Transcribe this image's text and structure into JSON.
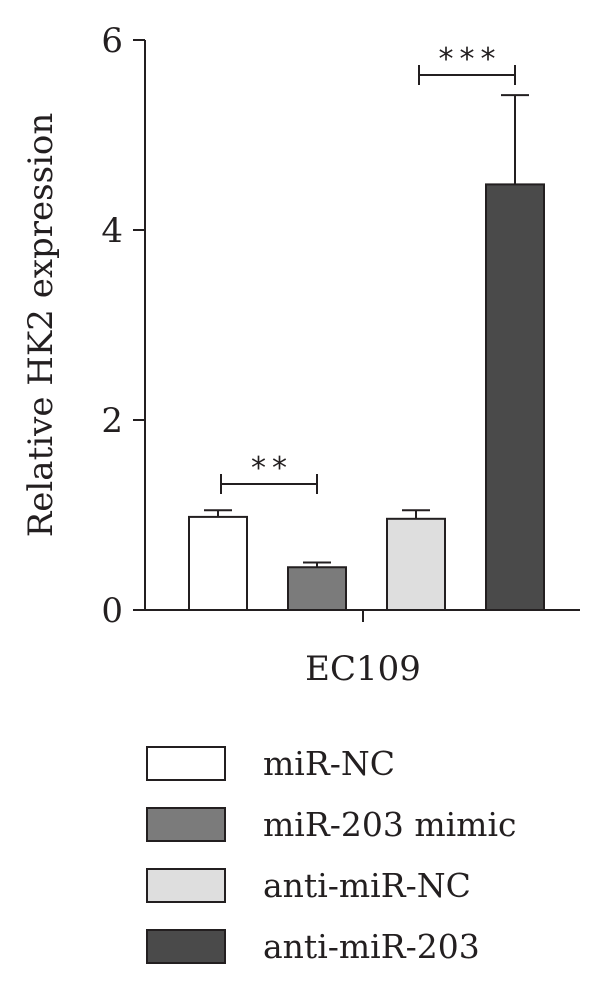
{
  "chart_data": {
    "type": "bar",
    "title": "",
    "xlabel": "",
    "ylabel": "Relative HK2 expression",
    "ylim": [
      0,
      6
    ],
    "yticks": [
      "0",
      "2",
      "4",
      "6"
    ],
    "categories": [
      "EC109"
    ],
    "grid": false,
    "legend_placement": "bottom",
    "series": [
      {
        "name": "miR-NC",
        "values": [
          0.98
        ],
        "error": [
          0.07
        ],
        "color": "#ffffff"
      },
      {
        "name": "miR-203 mimic",
        "values": [
          0.45
        ],
        "error": [
          0.05
        ],
        "color": "#7b7b7b"
      },
      {
        "name": "anti-miR-NC",
        "values": [
          0.96
        ],
        "error": [
          0.09
        ],
        "color": "#dedede"
      },
      {
        "name": "anti-miR-203",
        "values": [
          4.48
        ],
        "error": [
          0.94
        ],
        "color": "#4a4a4a"
      }
    ],
    "annotations": [
      {
        "text": "**",
        "between": [
          0,
          1
        ]
      },
      {
        "text": "***",
        "between": [
          2,
          3
        ]
      }
    ]
  }
}
